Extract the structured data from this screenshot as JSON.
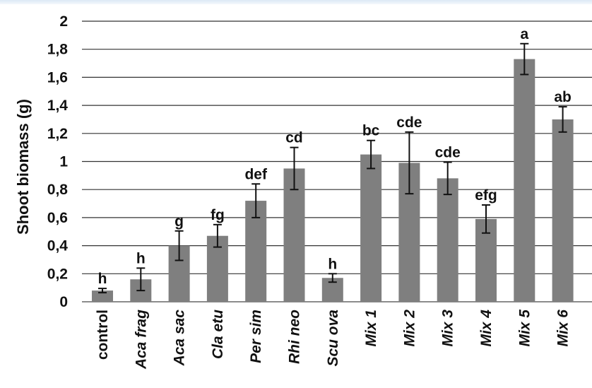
{
  "chart_data": {
    "type": "bar",
    "title": "",
    "xlabel": "",
    "ylabel": "Shoot biomass (g)",
    "ylim": [
      0,
      2
    ],
    "y_ticks": [
      "0",
      "0,2",
      "0,4",
      "0,6",
      "0,8",
      "1",
      "1,2",
      "1,4",
      "1,6",
      "1,8",
      "2"
    ],
    "grid": true,
    "bar_color": "#7f7f7f",
    "categories": [
      "control",
      "Aca frag",
      "Aca sac",
      "Cla etu",
      "Per sim",
      "Rhi neo",
      "Scu ova",
      "Mix 1",
      "Mix 2",
      "Mix 3",
      "Mix 4",
      "Mix 5",
      "Mix 6"
    ],
    "italic_categories": [
      false,
      true,
      true,
      true,
      true,
      true,
      true,
      true,
      true,
      true,
      true,
      true,
      true
    ],
    "values": [
      0.08,
      0.16,
      0.4,
      0.47,
      0.72,
      0.95,
      0.17,
      1.05,
      0.99,
      0.88,
      0.59,
      1.73,
      1.3
    ],
    "errors": [
      0.015,
      0.08,
      0.105,
      0.08,
      0.12,
      0.15,
      0.03,
      0.1,
      0.22,
      0.115,
      0.1,
      0.11,
      0.09
    ],
    "significance_letters": [
      "h",
      "h",
      "g",
      "fg",
      "def",
      "cd",
      "h",
      "bc",
      "cde",
      "cde",
      "efg",
      "a",
      "ab"
    ]
  }
}
